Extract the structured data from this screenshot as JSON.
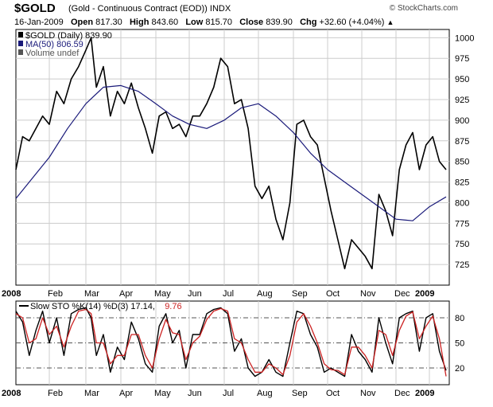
{
  "header": {
    "symbol": "$GOLD",
    "subtitle": "(Gold - Continuous Contract (EOD)) INDX",
    "brand": "© StockCharts.com",
    "date": "16-Jan-2009",
    "open_label": "Open",
    "open": "817.30",
    "high_label": "High",
    "high": "843.60",
    "low_label": "Low",
    "low": "815.70",
    "close_label": "Close",
    "close": "839.90",
    "chg_label": "Chg",
    "chg": "+32.60 (+4.04%)"
  },
  "colors": {
    "price": "#000000",
    "ma": "#1a1a7a",
    "k": "#000000",
    "d": "#cc2222",
    "grid": "#cccccc",
    "refline": "#555555"
  },
  "chart_data": [
    {
      "type": "line",
      "legend": [
        {
          "label": "$GOLD (Daily) 839.90",
          "color": "#000000"
        },
        {
          "label": "MA(50) 806.59",
          "color": "#1a1a7a"
        },
        {
          "label": "Volume undef",
          "color": "#555555"
        }
      ],
      "ylim": [
        700,
        1010
      ],
      "y_ticks": [
        725,
        750,
        775,
        800,
        825,
        850,
        875,
        900,
        925,
        950,
        975,
        1000
      ],
      "x_ticks": [
        "2008",
        "Feb",
        "Mar",
        "Apr",
        "May",
        "Jun",
        "Jul",
        "Aug",
        "Sep",
        "Oct",
        "Nov",
        "Dec",
        "2009"
      ],
      "grid": true,
      "series": [
        {
          "name": "$GOLD (Daily)",
          "x_points": [
            0.0,
            0.2,
            0.4,
            0.6,
            0.8,
            1.0,
            1.2,
            1.4,
            1.6,
            1.8,
            2.0,
            2.15,
            2.3,
            2.5,
            2.7,
            2.9,
            3.1,
            3.3,
            3.5,
            3.7,
            3.9,
            4.1,
            4.3,
            4.5,
            4.7,
            4.9,
            5.1,
            5.3,
            5.5,
            5.7,
            5.9,
            6.1,
            6.3,
            6.5,
            6.7,
            6.9,
            7.1,
            7.3,
            7.5,
            7.7,
            7.9,
            8.1,
            8.3,
            8.5,
            8.7,
            8.9,
            9.1,
            9.3,
            9.5,
            9.7,
            9.9,
            10.1,
            10.3,
            10.5,
            10.7,
            10.9,
            11.1,
            11.3,
            11.5,
            11.7,
            11.9,
            12.1,
            12.3,
            12.5
          ],
          "values": [
            840,
            880,
            875,
            890,
            905,
            895,
            935,
            920,
            950,
            965,
            985,
            1000,
            940,
            965,
            905,
            935,
            920,
            945,
            915,
            890,
            860,
            905,
            910,
            890,
            895,
            880,
            905,
            905,
            920,
            940,
            975,
            965,
            920,
            925,
            890,
            820,
            805,
            820,
            780,
            755,
            800,
            895,
            900,
            880,
            870,
            830,
            790,
            755,
            720,
            755,
            745,
            735,
            720,
            810,
            790,
            760,
            840,
            870,
            885,
            840,
            870,
            880,
            850,
            840
          ]
        },
        {
          "name": "MA(50)",
          "x_points": [
            0.0,
            0.5,
            1.0,
            1.5,
            2.0,
            2.5,
            3.0,
            3.5,
            4.0,
            4.5,
            5.0,
            5.5,
            6.0,
            6.5,
            7.0,
            7.5,
            8.0,
            8.5,
            9.0,
            9.5,
            10.0,
            10.5,
            11.0,
            11.5,
            12.0,
            12.5
          ],
          "values": [
            805,
            830,
            855,
            890,
            920,
            940,
            942,
            935,
            920,
            905,
            895,
            890,
            900,
            915,
            920,
            905,
            885,
            860,
            840,
            825,
            810,
            795,
            780,
            778,
            795,
            807
          ]
        }
      ]
    },
    {
      "type": "line",
      "legend": [
        {
          "label": "Slow STO %K(14) %D(3) 17.14,",
          "color": "#000000"
        },
        {
          "label": "9.76",
          "color": "#cc2222"
        }
      ],
      "ylim": [
        0,
        100
      ],
      "y_ticks": [
        20,
        50,
        80
      ],
      "x_ticks": [
        "2008",
        "Feb",
        "Mar",
        "Apr",
        "May",
        "Jun",
        "Jul",
        "Aug",
        "Sep",
        "Oct",
        "Nov",
        "Dec",
        "2009"
      ],
      "series": [
        {
          "name": "%K(14)",
          "x_points": [
            0.0,
            0.2,
            0.4,
            0.6,
            0.8,
            1.0,
            1.2,
            1.4,
            1.6,
            1.8,
            2.0,
            2.15,
            2.3,
            2.5,
            2.7,
            2.9,
            3.1,
            3.3,
            3.5,
            3.7,
            3.9,
            4.1,
            4.3,
            4.5,
            4.7,
            4.9,
            5.1,
            5.3,
            5.5,
            5.7,
            5.9,
            6.1,
            6.3,
            6.5,
            6.7,
            6.9,
            7.1,
            7.3,
            7.5,
            7.7,
            7.9,
            8.1,
            8.3,
            8.5,
            8.7,
            8.9,
            9.1,
            9.3,
            9.5,
            9.7,
            9.9,
            10.1,
            10.3,
            10.5,
            10.7,
            10.9,
            11.1,
            11.3,
            11.5,
            11.7,
            11.9,
            12.1,
            12.3,
            12.5
          ],
          "values": [
            88,
            75,
            35,
            65,
            88,
            50,
            80,
            35,
            85,
            90,
            92,
            80,
            35,
            60,
            15,
            45,
            30,
            75,
            55,
            25,
            15,
            70,
            85,
            50,
            65,
            20,
            60,
            60,
            85,
            90,
            92,
            85,
            40,
            55,
            20,
            10,
            15,
            30,
            15,
            10,
            50,
            88,
            85,
            60,
            45,
            15,
            20,
            15,
            10,
            60,
            40,
            30,
            15,
            80,
            50,
            25,
            80,
            85,
            88,
            40,
            80,
            85,
            40,
            17
          ]
        },
        {
          "name": "%D(3)",
          "x_points": [
            0.0,
            0.2,
            0.4,
            0.6,
            0.8,
            1.0,
            1.2,
            1.4,
            1.6,
            1.8,
            2.0,
            2.15,
            2.3,
            2.5,
            2.7,
            2.9,
            3.1,
            3.3,
            3.5,
            3.7,
            3.9,
            4.1,
            4.3,
            4.5,
            4.7,
            4.9,
            5.1,
            5.3,
            5.5,
            5.7,
            5.9,
            6.1,
            6.3,
            6.5,
            6.7,
            6.9,
            7.1,
            7.3,
            7.5,
            7.7,
            7.9,
            8.1,
            8.3,
            8.5,
            8.7,
            8.9,
            9.1,
            9.3,
            9.5,
            9.7,
            9.9,
            10.1,
            10.3,
            10.5,
            10.7,
            10.9,
            11.1,
            11.3,
            11.5,
            11.7,
            11.9,
            12.1,
            12.3,
            12.5
          ],
          "values": [
            85,
            80,
            50,
            55,
            80,
            60,
            70,
            45,
            70,
            88,
            90,
            85,
            50,
            50,
            25,
            35,
            35,
            60,
            60,
            35,
            20,
            55,
            78,
            62,
            60,
            30,
            50,
            58,
            78,
            88,
            91,
            88,
            55,
            50,
            30,
            15,
            15,
            25,
            20,
            12,
            35,
            75,
            85,
            70,
            50,
            25,
            18,
            17,
            12,
            45,
            45,
            35,
            20,
            65,
            60,
            35,
            65,
            82,
            87,
            55,
            70,
            82,
            55,
            10
          ]
        }
      ]
    }
  ]
}
